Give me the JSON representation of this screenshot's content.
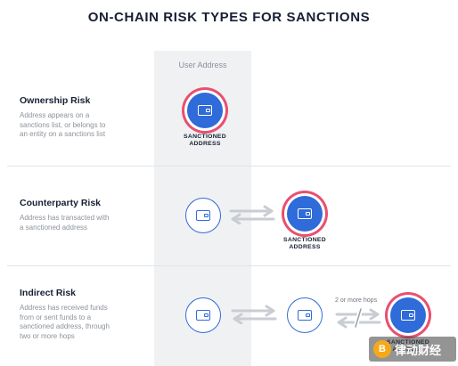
{
  "title": "ON-CHAIN RISK TYPES FOR SANCTIONS",
  "column_label": "User Address",
  "sanctioned_label": [
    "SANCTIONED",
    "ADDRESS"
  ],
  "rows": [
    {
      "title": "Ownership Risk",
      "description": [
        "Address appears on a",
        "sanctions list, or belongs to",
        "an entity on a sanctions list"
      ]
    },
    {
      "title": "Counterparty Risk",
      "description": [
        "Address has transacted with",
        "a sanctioned address"
      ]
    },
    {
      "title": "Indirect Risk",
      "description": [
        "Address has received funds",
        "from or sent funds to a",
        "sanctioned address, through",
        "two or more hops"
      ]
    }
  ],
  "hops_label": "2 or more hops",
  "watermark": {
    "logo_char": "B",
    "text": "律动财经"
  },
  "colors": {
    "accent_blue": "#2f6bd9",
    "sanction_ring": "#e8506f",
    "arrow_gray": "#c9cdd3",
    "column_bg": "#f0f1f3"
  }
}
